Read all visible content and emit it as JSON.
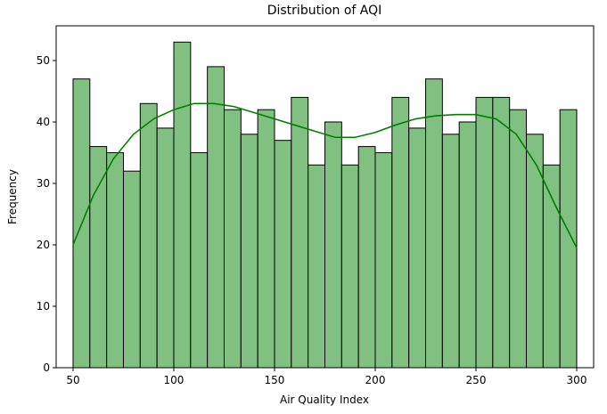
{
  "chart_data": {
    "type": "histogram",
    "title": "Distribution of AQI",
    "xlabel": "Air Quality Index",
    "ylabel": "Frequency",
    "bins": [
      50,
      58.33,
      66.67,
      75,
      83.33,
      91.67,
      100,
      108.33,
      116.67,
      125,
      133.33,
      141.67,
      150,
      158.33,
      166.67,
      175,
      183.33,
      191.67,
      200,
      208.33,
      216.67,
      225,
      233.33,
      241.67,
      250,
      258.33,
      266.67,
      275,
      283.33,
      291.67,
      300
    ],
    "values": [
      47,
      36,
      35,
      32,
      43,
      39,
      53,
      35,
      49,
      42,
      38,
      42,
      37,
      44,
      33,
      40,
      33,
      36,
      35,
      44,
      39,
      47,
      38,
      40,
      44,
      44,
      42,
      38,
      33,
      42
    ],
    "color": "#80c080",
    "edgecolor": "#000000",
    "kde": {
      "x": [
        50,
        60,
        70,
        80,
        90,
        100,
        110,
        120,
        130,
        140,
        150,
        160,
        170,
        180,
        190,
        200,
        210,
        220,
        230,
        240,
        250,
        260,
        270,
        280,
        290,
        300
      ],
      "values": [
        20,
        28,
        34,
        38,
        40.5,
        42,
        43,
        43,
        42.5,
        41.5,
        40.5,
        39.5,
        38.5,
        37.5,
        37.5,
        38.3,
        39.5,
        40.5,
        41,
        41.2,
        41.2,
        40.5,
        38,
        33,
        26,
        19.5
      ],
      "color": "#008000"
    },
    "xlim": [
      41.6,
      308.4
    ],
    "ylim": [
      0,
      55.65
    ],
    "xticks": [
      50,
      100,
      150,
      200,
      250,
      300
    ],
    "yticks": [
      0,
      10,
      20,
      30,
      40,
      50
    ]
  }
}
